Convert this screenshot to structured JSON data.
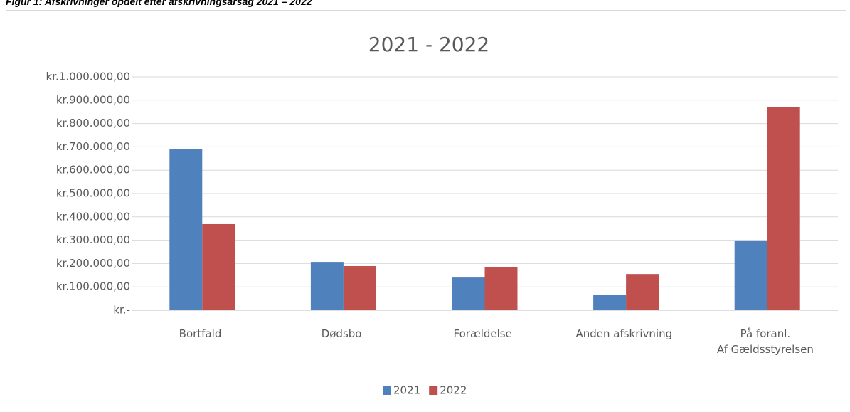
{
  "caption": "Figur 1: Afskrivninger opdelt efter afskrivningsårsag 2021 – 2022",
  "chart_data": {
    "type": "bar",
    "title": "2021 - 2022",
    "categories": [
      "Bortfald",
      "Dødsbo",
      "Forældelse",
      "Anden afskrivning",
      "På foranl.\nAf Gældsstyrelsen"
    ],
    "series": [
      {
        "name": "2021",
        "color": "#4f81bd",
        "values": [
          689000,
          207000,
          143000,
          67000,
          299000
        ]
      },
      {
        "name": "2022",
        "color": "#c0504d",
        "values": [
          369000,
          189000,
          186000,
          155000,
          869000
        ]
      }
    ],
    "ylim": [
      0,
      1000000
    ],
    "yticks": [
      {
        "value": 0,
        "label": "kr.-"
      },
      {
        "value": 100000,
        "label": "kr.100.000,00"
      },
      {
        "value": 200000,
        "label": "kr.200.000,00"
      },
      {
        "value": 300000,
        "label": "kr.300.000,00"
      },
      {
        "value": 400000,
        "label": "kr.400.000,00"
      },
      {
        "value": 500000,
        "label": "kr.500.000,00"
      },
      {
        "value": 600000,
        "label": "kr.600.000,00"
      },
      {
        "value": 700000,
        "label": "kr.700.000,00"
      },
      {
        "value": 800000,
        "label": "kr.800.000,00"
      },
      {
        "value": 900000,
        "label": "kr.900.000,00"
      },
      {
        "value": 1000000,
        "label": "kr.1.000.000,00"
      }
    ],
    "grid": true,
    "legend": "bottom"
  }
}
